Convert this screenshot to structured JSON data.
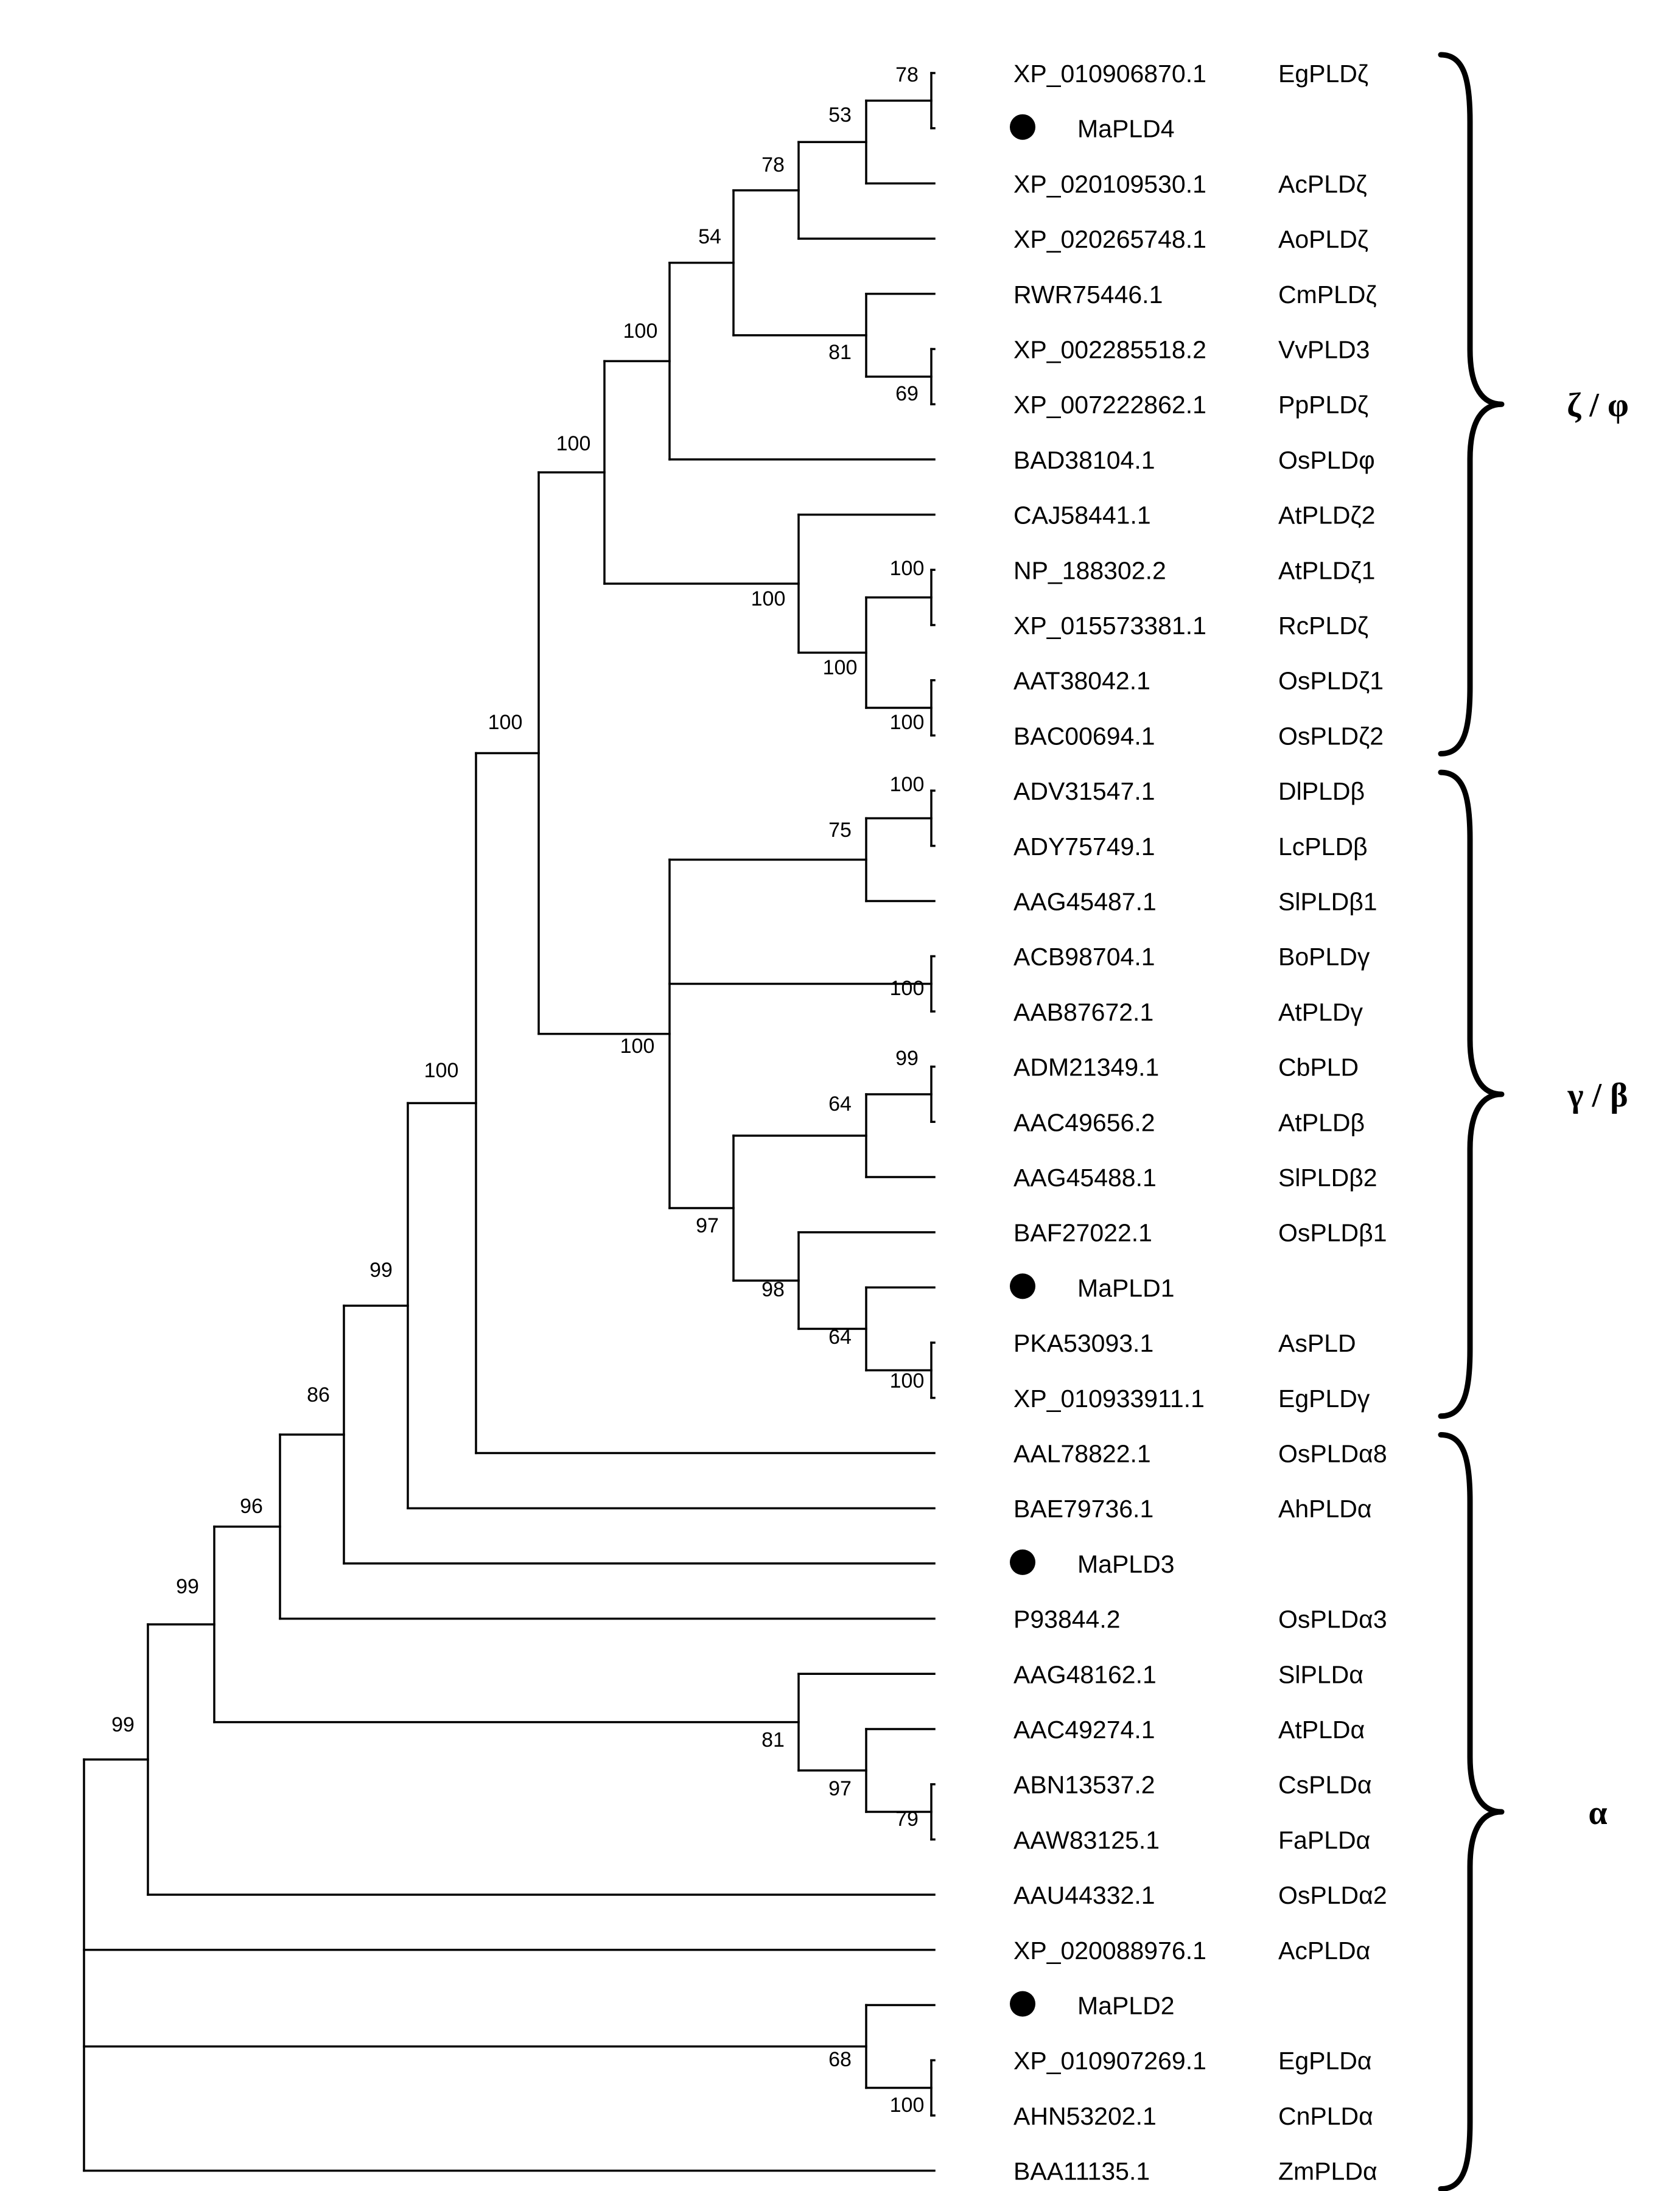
{
  "leaves": [
    {
      "accession": "XP_010906870.1",
      "gene": "EgPLDζ",
      "marked": false
    },
    {
      "accession": "",
      "gene": "MaPLD4",
      "marked": true
    },
    {
      "accession": "XP_020109530.1",
      "gene": "AcPLDζ",
      "marked": false
    },
    {
      "accession": "XP_020265748.1",
      "gene": "AoPLDζ",
      "marked": false
    },
    {
      "accession": "RWR75446.1",
      "gene": "CmPLDζ",
      "marked": false
    },
    {
      "accession": "XP_002285518.2",
      "gene": "VvPLD3",
      "marked": false
    },
    {
      "accession": "XP_007222862.1",
      "gene": "PpPLDζ",
      "marked": false
    },
    {
      "accession": "BAD38104.1",
      "gene": "OsPLDφ",
      "marked": false
    },
    {
      "accession": "CAJ58441.1",
      "gene": "AtPLDζ2",
      "marked": false
    },
    {
      "accession": "NP_188302.2",
      "gene": "AtPLDζ1",
      "marked": false
    },
    {
      "accession": "XP_015573381.1",
      "gene": "RcPLDζ",
      "marked": false
    },
    {
      "accession": "AAT38042.1",
      "gene": "OsPLDζ1",
      "marked": false
    },
    {
      "accession": "BAC00694.1",
      "gene": "OsPLDζ2",
      "marked": false
    },
    {
      "accession": "ADV31547.1",
      "gene": "DlPLDβ",
      "marked": false
    },
    {
      "accession": "ADY75749.1",
      "gene": "LcPLDβ",
      "marked": false
    },
    {
      "accession": "AAG45487.1",
      "gene": "SlPLDβ1",
      "marked": false
    },
    {
      "accession": "ACB98704.1",
      "gene": "BoPLDγ",
      "marked": false
    },
    {
      "accession": "AAB87672.1",
      "gene": "AtPLDγ",
      "marked": false
    },
    {
      "accession": "ADM21349.1",
      "gene": "CbPLD",
      "marked": false
    },
    {
      "accession": "AAC49656.2",
      "gene": "AtPLDβ",
      "marked": false
    },
    {
      "accession": "AAG45488.1",
      "gene": "SlPLDβ2",
      "marked": false
    },
    {
      "accession": "BAF27022.1",
      "gene": "OsPLDβ1",
      "marked": false
    },
    {
      "accession": "",
      "gene": "MaPLD1",
      "marked": true
    },
    {
      "accession": "PKA53093.1",
      "gene": "AsPLD",
      "marked": false
    },
    {
      "accession": "XP_010933911.1",
      "gene": "EgPLDγ",
      "marked": false
    },
    {
      "accession": "AAL78822.1",
      "gene": "OsPLDα8",
      "marked": false
    },
    {
      "accession": "BAE79736.1",
      "gene": "AhPLDα",
      "marked": false
    },
    {
      "accession": "",
      "gene": "MaPLD3",
      "marked": true
    },
    {
      "accession": "P93844.2",
      "gene": "OsPLDα3",
      "marked": false
    },
    {
      "accession": "AAG48162.1",
      "gene": "SlPLDα",
      "marked": false
    },
    {
      "accession": "AAC49274.1",
      "gene": "AtPLDα",
      "marked": false
    },
    {
      "accession": "ABN13537.2",
      "gene": "CsPLDα",
      "marked": false
    },
    {
      "accession": "AAW83125.1",
      "gene": "FaPLDα",
      "marked": false
    },
    {
      "accession": "AAU44332.1",
      "gene": "OsPLDα2",
      "marked": false
    },
    {
      "accession": "XP_020088976.1",
      "gene": "AcPLDα",
      "marked": false
    },
    {
      "accession": "",
      "gene": "MaPLD2",
      "marked": true
    },
    {
      "accession": "XP_010907269.1",
      "gene": "EgPLDα",
      "marked": false
    },
    {
      "accession": "AHN53202.1",
      "gene": "CnPLDα",
      "marked": false
    },
    {
      "accession": "BAA11135.1",
      "gene": "ZmPLDα",
      "marked": false
    }
  ],
  "bootstrap_values": [
    "78",
    "53",
    "78",
    "54",
    "81",
    "69",
    "100",
    "100",
    "100",
    "100",
    "100",
    "100",
    "100",
    "100",
    "75",
    "100",
    "100",
    "100",
    "99",
    "64",
    "97",
    "98",
    "64",
    "100",
    "99",
    "86",
    "96",
    "99",
    "81",
    "97",
    "79",
    "99",
    "68",
    "100"
  ],
  "groups": [
    {
      "label": "ζ / φ"
    },
    {
      "label": "γ / β"
    },
    {
      "label": "α"
    }
  ]
}
